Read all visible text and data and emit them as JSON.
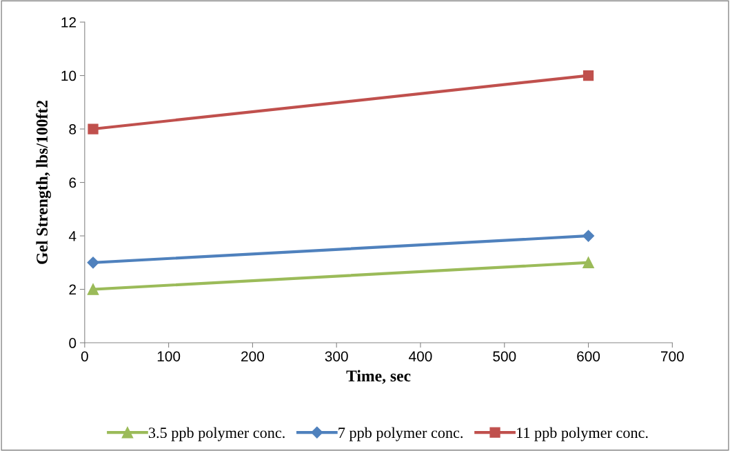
{
  "chart_data": {
    "type": "line",
    "xlabel": "Time, sec",
    "ylabel": "Gel Strength, lbs/100ft2",
    "xlim": [
      0,
      700
    ],
    "xticks": [
      0,
      100,
      200,
      300,
      400,
      500,
      600,
      700
    ],
    "ylim": [
      0,
      12
    ],
    "yticks": [
      0,
      2,
      4,
      6,
      8,
      10,
      12
    ],
    "x": [
      10,
      600
    ],
    "grid": false,
    "legend": "bottom",
    "line_style": "solid",
    "series": [
      {
        "name": "3.5 ppb polymer conc.",
        "color": "#9bbb59",
        "marker": "triangle",
        "values": [
          2,
          3
        ]
      },
      {
        "name": "7 ppb polymer conc.",
        "color": "#4f81bd",
        "marker": "diamond",
        "values": [
          3,
          4
        ]
      },
      {
        "name": "11 ppb polymer conc.",
        "color": "#c0504d",
        "marker": "square",
        "values": [
          8,
          10
        ]
      }
    ]
  }
}
